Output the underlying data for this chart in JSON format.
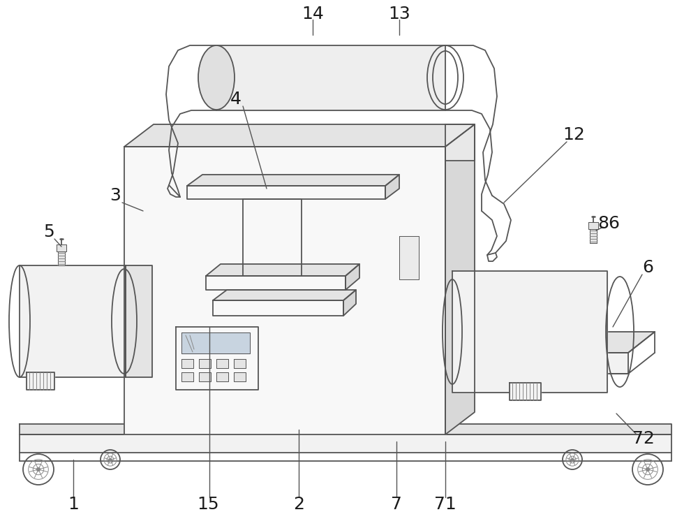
{
  "bg_color": "#ffffff",
  "line_color": "#888888",
  "dark_line": "#555555",
  "label_color": "#1a1a1a",
  "line_width": 1.3,
  "thin_line": 0.7,
  "label_fontsize": 18,
  "arrow_color": "#555555",
  "fill_main": "#f2f2f2",
  "fill_mid": "#e4e4e4",
  "fill_dark": "#d8d8d8",
  "fill_light": "#f8f8f8"
}
